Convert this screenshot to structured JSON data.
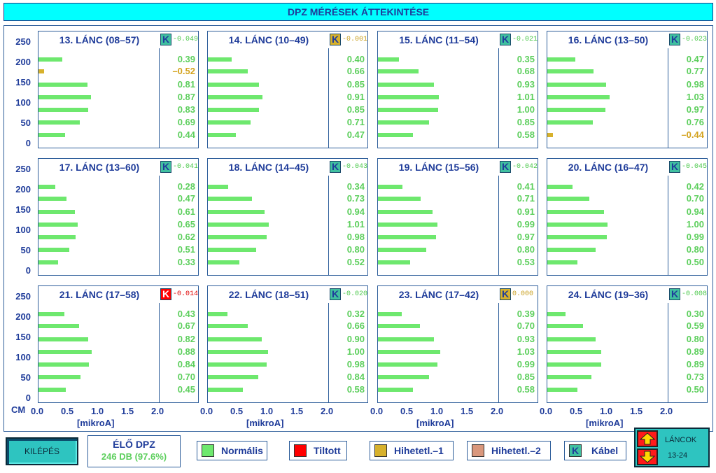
{
  "title": "DPZ MÉRÉSEK ÁTTEKINTÉSE",
  "y_ticks": [
    "250",
    "200",
    "150",
    "100",
    "50",
    "0"
  ],
  "x_ticks": [
    "0.0",
    "0.5",
    "1.0",
    "1.5",
    "2.0"
  ],
  "x_unit": "[mikroA]",
  "axis_cm": "CM",
  "colors": {
    "normal": "#6ee86e",
    "invalid1": "#d7b12c",
    "forbidden": "#ff0000",
    "invalid2": "#d9977c",
    "text": "#1f3c9a"
  },
  "chart_data": [
    {
      "type": "bar",
      "title": "13. LÁNC (08–57)",
      "k_value": "-0.049",
      "k_state": "normal",
      "values": [
        0.39,
        -0.52,
        0.81,
        0.87,
        0.83,
        0.69,
        0.44
      ],
      "labels": [
        "0.39",
        "–0.52",
        "0.81",
        "0.87",
        "0.83",
        "0.69",
        "0.44"
      ]
    },
    {
      "type": "bar",
      "title": "14. LÁNC (10–49)",
      "k_value": "-0.001",
      "k_state": "invalid1",
      "values": [
        0.4,
        0.66,
        0.85,
        0.91,
        0.85,
        0.71,
        0.47
      ],
      "labels": [
        "0.40",
        "0.66",
        "0.85",
        "0.91",
        "0.85",
        "0.71",
        "0.47"
      ]
    },
    {
      "type": "bar",
      "title": "15. LÁNC (11–54)",
      "k_value": "-0.021",
      "k_state": "normal",
      "values": [
        0.35,
        0.68,
        0.93,
        1.01,
        1.0,
        0.85,
        0.58
      ],
      "labels": [
        "0.35",
        "0.68",
        "0.93",
        "1.01",
        "1.00",
        "0.85",
        "0.58"
      ]
    },
    {
      "type": "bar",
      "title": "16. LÁNC (13–50)",
      "k_value": "-0.023",
      "k_state": "normal",
      "values": [
        0.47,
        0.77,
        0.98,
        1.03,
        0.97,
        0.76,
        -0.44
      ],
      "labels": [
        "0.47",
        "0.77",
        "0.98",
        "1.03",
        "0.97",
        "0.76",
        "–0.44"
      ]
    },
    {
      "type": "bar",
      "title": "17. LÁNC (13–60)",
      "k_value": "-0.041",
      "k_state": "normal",
      "values": [
        0.28,
        0.47,
        0.61,
        0.65,
        0.62,
        0.51,
        0.33
      ],
      "labels": [
        "0.28",
        "0.47",
        "0.61",
        "0.65",
        "0.62",
        "0.51",
        "0.33"
      ]
    },
    {
      "type": "bar",
      "title": "18. LÁNC (14–45)",
      "k_value": "-0.043",
      "k_state": "normal",
      "values": [
        0.34,
        0.73,
        0.94,
        1.01,
        0.98,
        0.8,
        0.52
      ],
      "labels": [
        "0.34",
        "0.73",
        "0.94",
        "1.01",
        "0.98",
        "0.80",
        "0.52"
      ]
    },
    {
      "type": "bar",
      "title": "19. LÁNC (15–56)",
      "k_value": "-0.042",
      "k_state": "normal",
      "values": [
        0.41,
        0.71,
        0.91,
        0.99,
        0.97,
        0.8,
        0.53
      ],
      "labels": [
        "0.41",
        "0.71",
        "0.91",
        "0.99",
        "0.97",
        "0.80",
        "0.53"
      ]
    },
    {
      "type": "bar",
      "title": "20. LÁNC (16–47)",
      "k_value": "-0.045",
      "k_state": "normal",
      "values": [
        0.42,
        0.7,
        0.94,
        1.0,
        0.99,
        0.8,
        0.5
      ],
      "labels": [
        "0.42",
        "0.70",
        "0.94",
        "1.00",
        "0.99",
        "0.80",
        "0.50"
      ]
    },
    {
      "type": "bar",
      "title": "21. LÁNC (17–58)",
      "k_value": "-0.014",
      "k_state": "forbidden",
      "values": [
        0.43,
        0.67,
        0.82,
        0.88,
        0.84,
        0.7,
        0.45
      ],
      "labels": [
        "0.43",
        "0.67",
        "0.82",
        "0.88",
        "0.84",
        "0.70",
        "0.45"
      ]
    },
    {
      "type": "bar",
      "title": "22. LÁNC (18–51)",
      "k_value": "-0.020",
      "k_state": "normal",
      "values": [
        0.32,
        0.66,
        0.9,
        1.0,
        0.98,
        0.84,
        0.58
      ],
      "labels": [
        "0.32",
        "0.66",
        "0.90",
        "1.00",
        "0.98",
        "0.84",
        "0.58"
      ]
    },
    {
      "type": "bar",
      "title": "23. LÁNC (17–42)",
      "k_value": "0.000",
      "k_state": "invalid1",
      "values": [
        0.39,
        0.7,
        0.93,
        1.03,
        0.99,
        0.85,
        0.58
      ],
      "labels": [
        "0.39",
        "0.70",
        "0.93",
        "1.03",
        "0.99",
        "0.85",
        "0.58"
      ]
    },
    {
      "type": "bar",
      "title": "24. LÁNC (19–36)",
      "k_value": "-0.008",
      "k_state": "normal",
      "values": [
        0.3,
        0.59,
        0.8,
        0.89,
        0.89,
        0.73,
        0.5
      ],
      "labels": [
        "0.30",
        "0.59",
        "0.80",
        "0.89",
        "0.89",
        "0.73",
        "0.50"
      ]
    }
  ],
  "footer": {
    "exit_label": "KILÉPÉS",
    "live_title": "ÉLŐ DPZ",
    "live_value": "246 DB (97.6%)",
    "legend": [
      {
        "label": "Normális",
        "color": "#6ee86e"
      },
      {
        "label": "Tiltott",
        "color": "#ff0000"
      },
      {
        "label": "Hihetetl.–1",
        "color": "#d7b12c"
      },
      {
        "label": "Hihetetl.–2",
        "color": "#d9977c"
      },
      {
        "label": "Kábel",
        "color": "#40c0a0",
        "glyph": "K"
      }
    ],
    "chains_label": "LÁNCOK",
    "chains_range": "13-24"
  }
}
